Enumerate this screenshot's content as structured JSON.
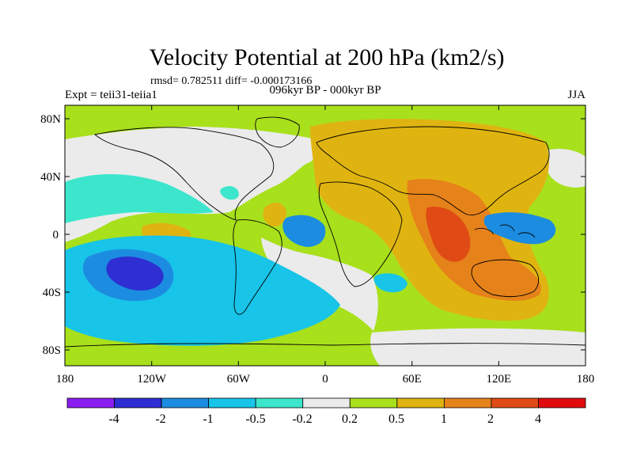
{
  "header": {
    "title": "Velocity Potential at 200 hPa (km2/s)",
    "stats": "rmsd= 0.782511 diff= -0.000173166",
    "experiment": "Expt = teii31-teiia1",
    "period": "096kyr BP - 000kyr BP",
    "season": "JJA"
  },
  "axes": {
    "lat_ticks": [
      "80N",
      "40N",
      "0",
      "40S",
      "80S"
    ],
    "lon_ticks": [
      "180",
      "120W",
      "60W",
      "0",
      "60E",
      "120E",
      "180"
    ]
  },
  "colorbar": {
    "labels": [
      "-4",
      "-2",
      "-1",
      "-0.5",
      "-0.2",
      "0.2",
      "0.5",
      "1",
      "2",
      "4"
    ],
    "colors": [
      "#8a1ef0",
      "#2e2ed2",
      "#1c8ce0",
      "#18c4e8",
      "#3ce6cc",
      "#ebebeb",
      "#a8e01c",
      "#e0b410",
      "#e6821a",
      "#e04a14",
      "#e00c0c"
    ]
  },
  "map": {
    "background_color": "#a8e01c"
  }
}
